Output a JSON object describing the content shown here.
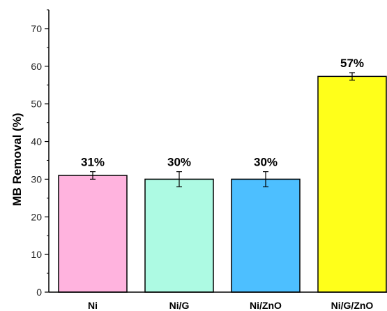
{
  "chart_data": {
    "type": "bar",
    "title": "",
    "xlabel": "",
    "ylabel": "MB Removal (%)",
    "ylim": [
      0,
      75
    ],
    "yticks": [
      0,
      10,
      20,
      30,
      40,
      50,
      60,
      70
    ],
    "grid": false,
    "categories": [
      "Ni",
      "Ni/G",
      "Ni/ZnO",
      "Ni/G/ZnO"
    ],
    "values": [
      31,
      30,
      30,
      57.3
    ],
    "errors": [
      1,
      2,
      2,
      1
    ],
    "data_labels": [
      "31%",
      "30%",
      "30%",
      "57%"
    ],
    "colors": [
      "#FFB3DE",
      "#ADFAE3",
      "#4DBFFF",
      "#FFFF1A"
    ]
  }
}
